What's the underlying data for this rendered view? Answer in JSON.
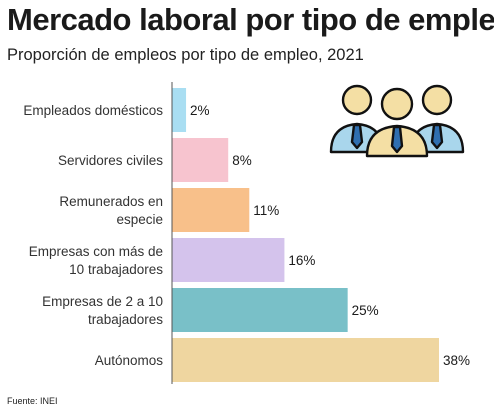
{
  "title": "Mercado laboral por tipo de empleo",
  "subtitle": "Proporción de empleos por tipo de empleo, 2021",
  "source": "Fuente: INEI",
  "icon": "group-of-workers-icon",
  "chart_data": {
    "type": "bar",
    "orientation": "horizontal",
    "categories": [
      "Empleados domésticos",
      "Servidores civiles",
      "Remunerados en especie",
      "Empresas con más de 10 trabajadores",
      "Empresas de 2 a 10 trabajadores",
      "Autónomos"
    ],
    "category_lines": [
      [
        "Empleados domésticos"
      ],
      [
        "Servidores civiles"
      ],
      [
        "Remunerados en",
        "especie"
      ],
      [
        "Empresas con más de",
        "10 trabajadores"
      ],
      [
        "Empresas de 2 a 10",
        "trabajadores"
      ],
      [
        "Autónomos"
      ]
    ],
    "values": [
      2,
      8,
      11,
      16,
      25,
      38
    ],
    "value_labels": [
      "2%",
      "8%",
      "11%",
      "16%",
      "25%",
      "38%"
    ],
    "colors": [
      "#a9def2",
      "#f7c4cf",
      "#f8c08a",
      "#d4c3ec",
      "#79c0c8",
      "#efd6a0"
    ],
    "xlim": [
      0,
      38
    ],
    "grid": false,
    "legend": "none"
  }
}
